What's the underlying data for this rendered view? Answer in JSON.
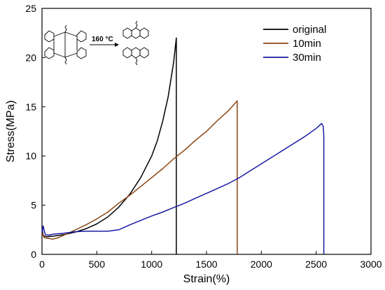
{
  "chart_data": {
    "type": "line",
    "xlabel": "Strain(%)",
    "ylabel": "Stress(MPa)",
    "xlim": [
      0,
      3000
    ],
    "ylim": [
      0,
      25
    ],
    "x_ticks": [
      0,
      500,
      1000,
      1500,
      2000,
      2500,
      3000
    ],
    "y_ticks": [
      0,
      5,
      10,
      15,
      20,
      25
    ],
    "grid": false,
    "legend_position": "top-right",
    "annotation": "160 °C",
    "series": [
      {
        "name": "original",
        "color": "#000000",
        "points": [
          [
            0,
            2.8
          ],
          [
            10,
            1.9
          ],
          [
            40,
            1.8
          ],
          [
            100,
            1.85
          ],
          [
            200,
            2.0
          ],
          [
            300,
            2.25
          ],
          [
            400,
            2.6
          ],
          [
            500,
            3.1
          ],
          [
            600,
            3.8
          ],
          [
            700,
            4.8
          ],
          [
            800,
            6.1
          ],
          [
            900,
            7.8
          ],
          [
            1000,
            10.0
          ],
          [
            1050,
            11.5
          ],
          [
            1100,
            13.5
          ],
          [
            1150,
            16.0
          ],
          [
            1200,
            19.5
          ],
          [
            1225,
            22.0
          ],
          [
            1225,
            0
          ]
        ]
      },
      {
        "name": "10min",
        "color": "#8B4513",
        "points": [
          [
            0,
            2.2
          ],
          [
            20,
            1.7
          ],
          [
            100,
            1.55
          ],
          [
            150,
            1.7
          ],
          [
            250,
            2.2
          ],
          [
            400,
            3.0
          ],
          [
            500,
            3.6
          ],
          [
            600,
            4.3
          ],
          [
            700,
            5.2
          ],
          [
            800,
            6.0
          ],
          [
            900,
            6.9
          ],
          [
            1000,
            7.8
          ],
          [
            1100,
            8.7
          ],
          [
            1200,
            9.7
          ],
          [
            1300,
            10.6
          ],
          [
            1400,
            11.6
          ],
          [
            1500,
            12.5
          ],
          [
            1600,
            13.6
          ],
          [
            1700,
            14.6
          ],
          [
            1780,
            15.6
          ],
          [
            1780,
            0
          ]
        ]
      },
      {
        "name": "30min",
        "color": "#1a1aa6",
        "points": [
          [
            0,
            2.2
          ],
          [
            10,
            2.9
          ],
          [
            30,
            2.0
          ],
          [
            60,
            1.95
          ],
          [
            100,
            2.05
          ],
          [
            200,
            2.15
          ],
          [
            300,
            2.3
          ],
          [
            400,
            2.35
          ],
          [
            500,
            2.35
          ],
          [
            600,
            2.35
          ],
          [
            700,
            2.5
          ],
          [
            800,
            3.0
          ],
          [
            900,
            3.45
          ],
          [
            1000,
            3.9
          ],
          [
            1100,
            4.3
          ],
          [
            1200,
            4.75
          ],
          [
            1300,
            5.2
          ],
          [
            1400,
            5.7
          ],
          [
            1500,
            6.2
          ],
          [
            1600,
            6.7
          ],
          [
            1700,
            7.2
          ],
          [
            1800,
            7.8
          ],
          [
            1900,
            8.5
          ],
          [
            2000,
            9.2
          ],
          [
            2100,
            9.9
          ],
          [
            2200,
            10.6
          ],
          [
            2300,
            11.3
          ],
          [
            2400,
            12.0
          ],
          [
            2500,
            12.8
          ],
          [
            2550,
            13.3
          ],
          [
            2565,
            13.0
          ],
          [
            2570,
            12.0
          ],
          [
            2570,
            0
          ]
        ]
      }
    ]
  }
}
